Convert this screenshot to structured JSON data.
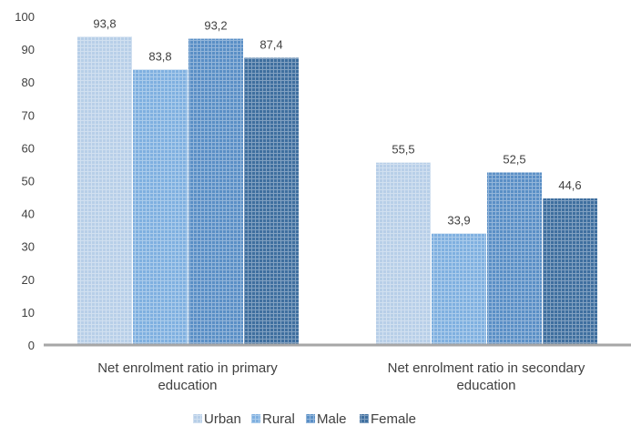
{
  "chart_data": {
    "type": "bar",
    "categories": [
      [
        "Net enrolment ratio in primary",
        "education"
      ],
      [
        "Net enrolment ratio in secondary",
        "education"
      ]
    ],
    "series": [
      {
        "name": "Urban",
        "values": [
          93.8,
          55.5
        ],
        "labels": [
          "93,8",
          "55,5"
        ],
        "color": "#b8cfe8"
      },
      {
        "name": "Rural",
        "values": [
          83.8,
          33.9
        ],
        "labels": [
          "83,8",
          "33,9"
        ],
        "color": "#7fb0e0"
      },
      {
        "name": "Male",
        "values": [
          93.2,
          52.5
        ],
        "labels": [
          "93,2",
          "52,5"
        ],
        "color": "#5a8fc6"
      },
      {
        "name": "Female",
        "values": [
          87.4,
          44.6
        ],
        "labels": [
          "87,4",
          "44,6"
        ],
        "color": "#3f6f9f"
      }
    ],
    "ylim": [
      0,
      100
    ],
    "yticks": [
      0,
      10,
      20,
      30,
      40,
      50,
      60,
      70,
      80,
      90,
      100
    ],
    "grid": false,
    "legend": "bottom",
    "xlabel": "",
    "ylabel": ""
  }
}
